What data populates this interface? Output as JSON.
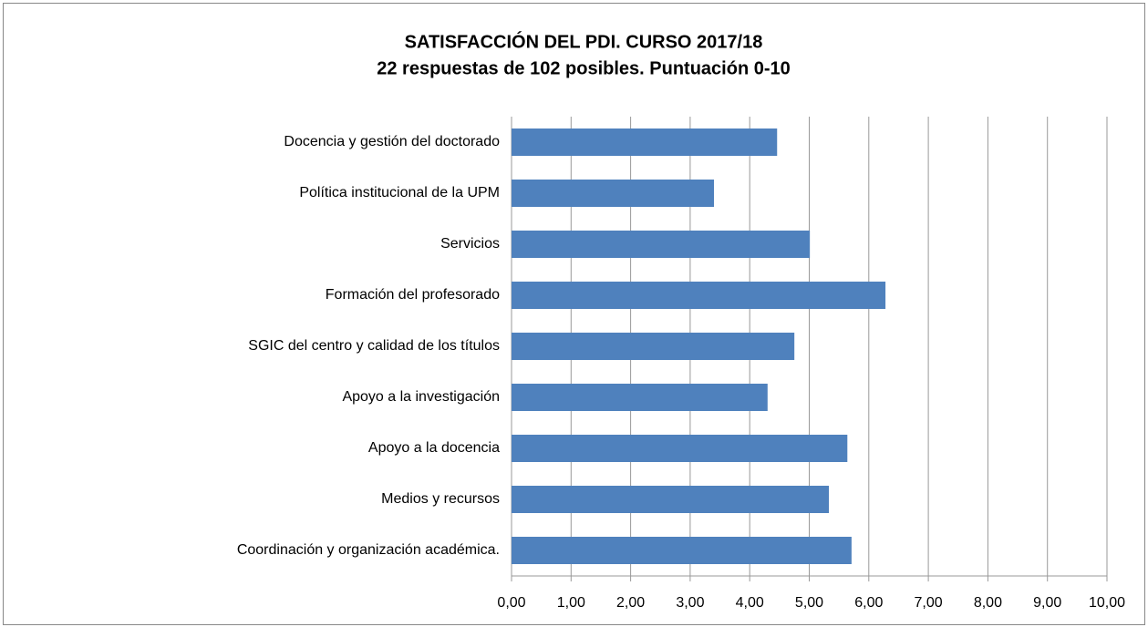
{
  "chart_data": {
    "type": "bar",
    "orientation": "horizontal",
    "title": "SATISFACCIÓN DEL PDI. CURSO 2017/18",
    "subtitle": "22 respuestas de 102 posibles. Puntuación 0-10",
    "categories": [
      "Docencia y gestión del doctorado",
      "Política institucional de la UPM",
      "Servicios",
      "Formación del profesorado",
      "SGIC del centro y calidad de los títulos",
      "Apoyo a la investigación",
      "Apoyo a la docencia",
      "Medios y recursos",
      "Coordinación y organización académica."
    ],
    "values": [
      4.46,
      3.4,
      5.01,
      6.28,
      4.75,
      4.3,
      5.64,
      5.33,
      5.71
    ],
    "color": "#4f81bd",
    "xlim": [
      0,
      10
    ],
    "xticks": [
      {
        "value": 0,
        "label": "0,00"
      },
      {
        "value": 1,
        "label": "1,00"
      },
      {
        "value": 2,
        "label": "2,00"
      },
      {
        "value": 3,
        "label": "3,00"
      },
      {
        "value": 4,
        "label": "4,00"
      },
      {
        "value": 5,
        "label": "5,00"
      },
      {
        "value": 6,
        "label": "6,00"
      },
      {
        "value": 7,
        "label": "7,00"
      },
      {
        "value": 8,
        "label": "8,00"
      },
      {
        "value": 9,
        "label": "9,00"
      },
      {
        "value": 10,
        "label": "10,00"
      }
    ],
    "grid": true
  }
}
